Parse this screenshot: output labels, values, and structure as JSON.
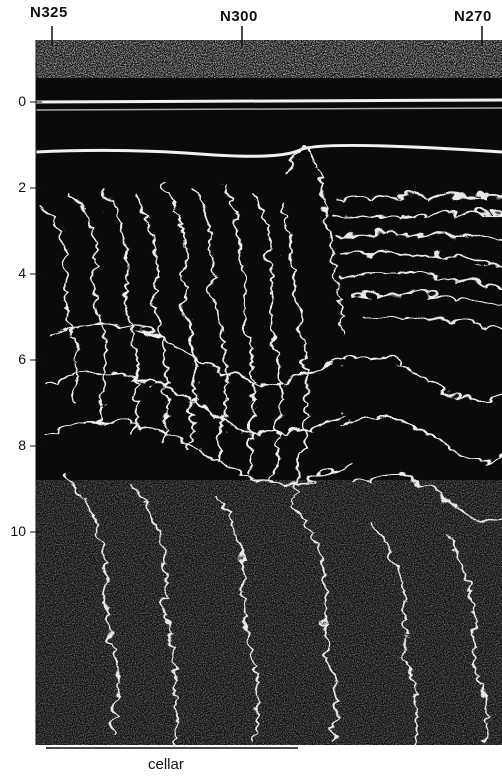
{
  "markers": [
    {
      "label": "N325"
    },
    {
      "label": "N300"
    },
    {
      "label": "N270"
    }
  ],
  "depth_ticks": [
    "0",
    "2",
    "4",
    "6",
    "8",
    "10"
  ],
  "annotation": "cellar",
  "colors": {
    "background": "#ffffff",
    "signal": "#0a0a0a",
    "reflector": "#f2f2f2"
  }
}
